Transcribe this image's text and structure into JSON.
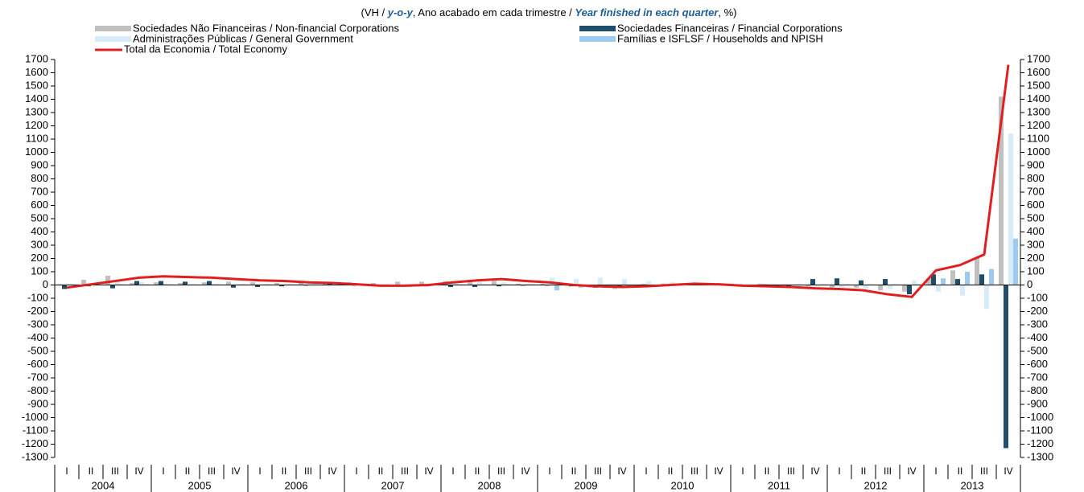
{
  "chart_data": {
    "type": "bar_line",
    "subtitle_parts": [
      "(VH / ",
      "y-o-y",
      ", Ano acabado em cada trimestre / ",
      "Year finished in each quarter",
      ", %)"
    ],
    "categories": [
      "I",
      "II",
      "III",
      "IV",
      "I",
      "II",
      "III",
      "IV",
      "I",
      "II",
      "III",
      "IV",
      "I",
      "II",
      "III",
      "IV",
      "I",
      "II",
      "III",
      "IV",
      "I",
      "II",
      "III",
      "IV",
      "I",
      "II",
      "III",
      "IV",
      "I",
      "II",
      "III",
      "IV",
      "I",
      "II",
      "III",
      "IV",
      "I",
      "II",
      "III",
      "IV"
    ],
    "years": [
      "2004",
      "2005",
      "2006",
      "2007",
      "2008",
      "2009",
      "2010",
      "2011",
      "2012",
      "2013"
    ],
    "series": [
      {
        "name": "Sociedades Não Financeiras / Non-financial Corporations",
        "color": "#c0c0c0",
        "kind": "bar",
        "values": [
          5,
          40,
          70,
          15,
          20,
          15,
          20,
          25,
          20,
          15,
          15,
          10,
          20,
          15,
          25,
          25,
          30,
          30,
          30,
          10,
          10,
          -10,
          -20,
          -30,
          -10,
          10,
          10,
          5,
          5,
          10,
          5,
          -10,
          -20,
          -20,
          -40,
          -50,
          50,
          110,
          210,
          1420
        ]
      },
      {
        "name": "Sociedades Financeiras / Financial Corporations",
        "color": "#1f4e6b",
        "kind": "bar",
        "values": [
          -30,
          -10,
          -25,
          30,
          30,
          25,
          30,
          -20,
          -15,
          -10,
          -5,
          10,
          -5,
          -10,
          -5,
          -10,
          -15,
          -15,
          -10,
          -5,
          -5,
          -10,
          -20,
          -10,
          5,
          5,
          5,
          0,
          5,
          5,
          -10,
          45,
          50,
          35,
          45,
          -70,
          80,
          45,
          80,
          -1230
        ]
      },
      {
        "name": "Administrações Públicas / General Government",
        "color": "#d6ecf8",
        "kind": "bar",
        "values": [
          10,
          5,
          30,
          20,
          10,
          5,
          10,
          5,
          5,
          5,
          5,
          5,
          5,
          5,
          5,
          5,
          20,
          30,
          20,
          10,
          55,
          45,
          55,
          45,
          30,
          20,
          15,
          10,
          10,
          10,
          5,
          -10,
          -20,
          -30,
          -30,
          35,
          -50,
          -80,
          -180,
          1140
        ]
      },
      {
        "name": "Famílias e ISFLSF / Households and NPISH",
        "color": "#9dcbf0",
        "kind": "bar",
        "values": [
          5,
          5,
          5,
          5,
          5,
          5,
          5,
          5,
          5,
          5,
          5,
          5,
          5,
          5,
          5,
          5,
          5,
          5,
          5,
          5,
          -40,
          -20,
          -20,
          -20,
          5,
          5,
          5,
          5,
          5,
          5,
          5,
          5,
          5,
          5,
          5,
          5,
          50,
          100,
          120,
          350
        ]
      },
      {
        "name": "Total da Economia / Total Economy",
        "color": "#e02020",
        "kind": "line",
        "values": [
          -20,
          5,
          30,
          55,
          65,
          60,
          55,
          45,
          35,
          30,
          20,
          15,
          5,
          -5,
          -5,
          0,
          20,
          35,
          45,
          30,
          20,
          0,
          -10,
          -15,
          -10,
          0,
          10,
          5,
          -5,
          -10,
          -15,
          -25,
          -30,
          -40,
          -70,
          -90,
          110,
          150,
          230,
          1660
        ]
      }
    ],
    "ylim": [
      -1300,
      1700
    ],
    "yticks": [
      -1300,
      -1200,
      -1100,
      -1000,
      -900,
      -800,
      -700,
      -600,
      -500,
      -400,
      -300,
      -200,
      -100,
      0,
      100,
      200,
      300,
      400,
      500,
      600,
      700,
      800,
      900,
      1000,
      1100,
      1200,
      1300,
      1400,
      1500,
      1600,
      1700
    ],
    "y2lim": [
      -1300,
      1700
    ],
    "y2ticks": [
      -1300,
      -1200,
      -1100,
      -1000,
      -900,
      -800,
      -700,
      -600,
      -500,
      -400,
      -300,
      -200,
      -100,
      0,
      100,
      200,
      300,
      400,
      500,
      600,
      700,
      800,
      900,
      1000,
      1100,
      1200,
      1300,
      1400,
      1500,
      1600,
      1700
    ]
  }
}
